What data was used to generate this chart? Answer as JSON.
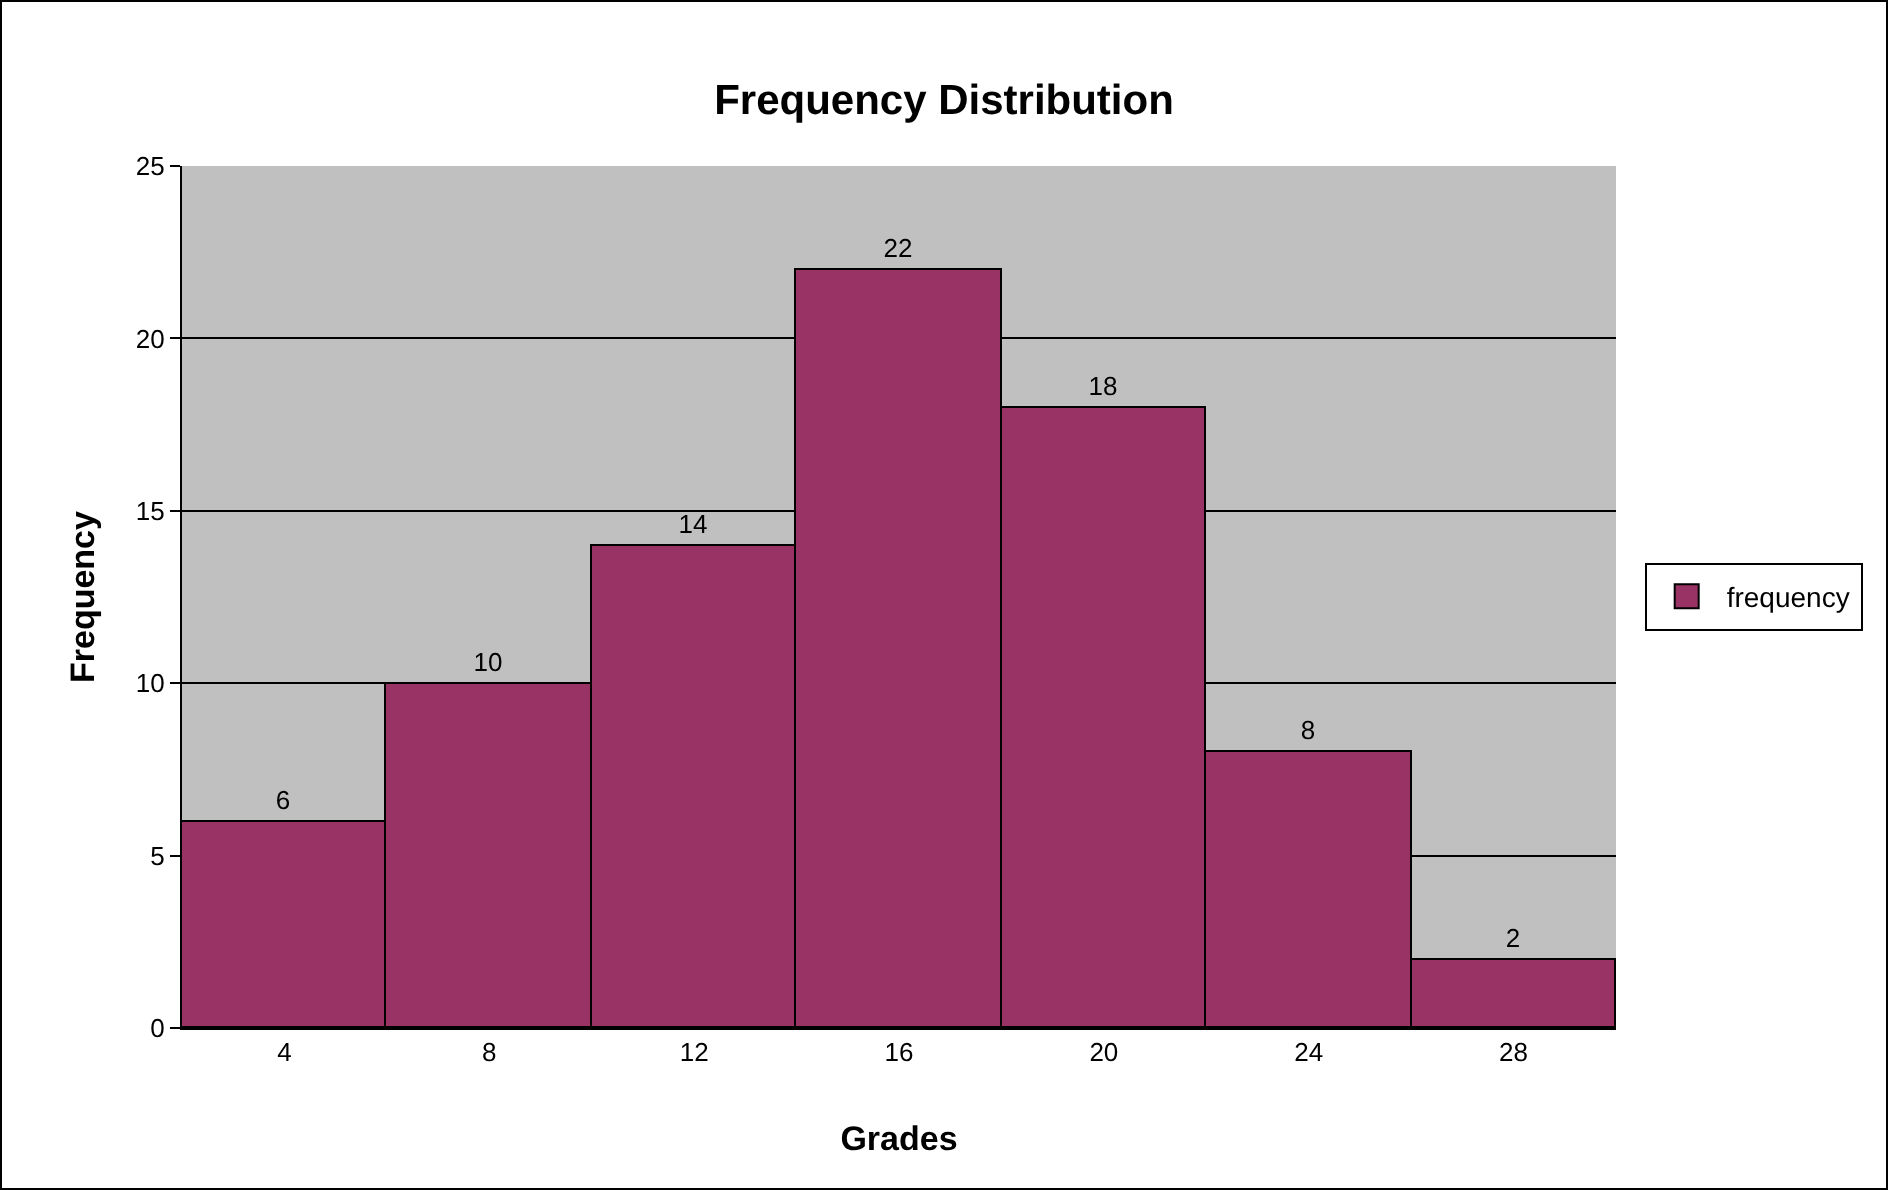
{
  "chart_data": {
    "type": "bar",
    "title": "Frequency Distribution",
    "xlabel": "Grades",
    "ylabel": "Frequency",
    "categories": [
      "4",
      "8",
      "12",
      "16",
      "20",
      "24",
      "28"
    ],
    "series": [
      {
        "name": "frequency",
        "color": "#993366",
        "values": [
          6,
          10,
          14,
          22,
          18,
          8,
          2
        ]
      }
    ],
    "ylim": [
      0,
      25
    ],
    "yticks": [
      0,
      5,
      10,
      15,
      20,
      25
    ],
    "grid": "y",
    "legend": "right",
    "data_labels": true
  }
}
